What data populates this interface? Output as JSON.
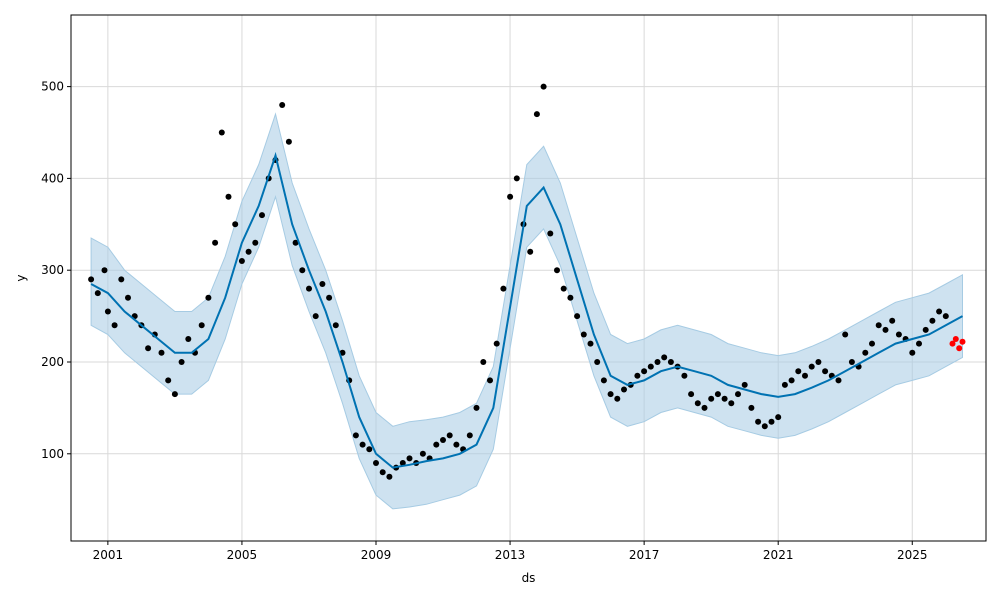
{
  "chart_data": {
    "type": "line",
    "title": "",
    "xlabel": "ds",
    "ylabel": "y",
    "x_ticks": [
      2001,
      2005,
      2009,
      2013,
      2017,
      2021,
      2025
    ],
    "y_ticks": [
      100,
      200,
      300,
      400,
      500
    ],
    "xlim": [
      1999.9,
      2027.2
    ],
    "ylim": [
      5,
      578
    ],
    "grid": true,
    "legend": "none",
    "colors": {
      "observed": "#000000",
      "forecast": "#0072B2",
      "interval": "#a6cbe3",
      "future_observed": "#ff0000"
    },
    "series": [
      {
        "role": "observed",
        "style": "points",
        "x": [
          2000.5,
          2000.7,
          2000.9,
          2001.0,
          2001.2,
          2001.4,
          2001.6,
          2001.8,
          2002.0,
          2002.2,
          2002.4,
          2002.6,
          2002.8,
          2003.0,
          2003.2,
          2003.4,
          2003.6,
          2003.8,
          2004.0,
          2004.2,
          2004.4,
          2004.6,
          2004.8,
          2005.0,
          2005.2,
          2005.4,
          2005.6,
          2005.8,
          2006.0,
          2006.2,
          2006.4,
          2006.6,
          2006.8,
          2007.0,
          2007.2,
          2007.4,
          2007.6,
          2007.8,
          2008.0,
          2008.2,
          2008.4,
          2008.6,
          2008.8,
          2009.0,
          2009.2,
          2009.4,
          2009.6,
          2009.8,
          2010.0,
          2010.2,
          2010.4,
          2010.6,
          2010.8,
          2011.0,
          2011.2,
          2011.4,
          2011.6,
          2011.8,
          2012.0,
          2012.2,
          2012.4,
          2012.6,
          2012.8,
          2013.0,
          2013.2,
          2013.4,
          2013.6,
          2013.8,
          2014.0,
          2014.2,
          2014.4,
          2014.6,
          2014.8,
          2015.0,
          2015.2,
          2015.4,
          2015.6,
          2015.8,
          2016.0,
          2016.2,
          2016.4,
          2016.6,
          2016.8,
          2017.0,
          2017.2,
          2017.4,
          2017.6,
          2017.8,
          2018.0,
          2018.2,
          2018.4,
          2018.6,
          2018.8,
          2019.0,
          2019.2,
          2019.4,
          2019.6,
          2019.8,
          2020.0,
          2020.2,
          2020.4,
          2020.6,
          2020.8,
          2021.0,
          2021.2,
          2021.4,
          2021.6,
          2021.8,
          2022.0,
          2022.2,
          2022.4,
          2022.6,
          2022.8,
          2023.0,
          2023.2,
          2023.4,
          2023.6,
          2023.8,
          2024.0,
          2024.2,
          2024.4,
          2024.6,
          2024.8,
          2025.0,
          2025.2,
          2025.4,
          2025.6,
          2025.8,
          2026.0
        ],
        "values": [
          290,
          275,
          300,
          255,
          240,
          290,
          270,
          250,
          240,
          215,
          230,
          210,
          180,
          165,
          200,
          225,
          210,
          240,
          270,
          330,
          450,
          380,
          350,
          310,
          320,
          330,
          360,
          400,
          420,
          480,
          440,
          330,
          300,
          280,
          250,
          285,
          270,
          240,
          210,
          180,
          120,
          110,
          105,
          90,
          80,
          75,
          85,
          90,
          95,
          90,
          100,
          95,
          110,
          115,
          120,
          110,
          105,
          120,
          150,
          200,
          180,
          220,
          280,
          380,
          400,
          350,
          320,
          470,
          500,
          340,
          300,
          280,
          270,
          250,
          230,
          220,
          200,
          180,
          165,
          160,
          170,
          175,
          185,
          190,
          195,
          200,
          205,
          200,
          195,
          185,
          165,
          155,
          150,
          160,
          165,
          160,
          155,
          165,
          175,
          150,
          135,
          130,
          135,
          140,
          175,
          180,
          190,
          185,
          195,
          200,
          190,
          185,
          180,
          230,
          200,
          195,
          210,
          220,
          240,
          235,
          245,
          230,
          225,
          210,
          220,
          235,
          245,
          255,
          250
        ]
      },
      {
        "role": "forecast",
        "style": "line",
        "x": [
          2000.5,
          2001.0,
          2001.5,
          2002.0,
          2002.5,
          2003.0,
          2003.5,
          2004.0,
          2004.5,
          2005.0,
          2005.5,
          2006.0,
          2006.5,
          2007.0,
          2007.5,
          2008.0,
          2008.5,
          2009.0,
          2009.5,
          2010.0,
          2010.5,
          2011.0,
          2011.5,
          2012.0,
          2012.5,
          2013.0,
          2013.5,
          2014.0,
          2014.5,
          2015.0,
          2015.5,
          2016.0,
          2016.5,
          2017.0,
          2017.5,
          2018.0,
          2018.5,
          2019.0,
          2019.5,
          2020.0,
          2020.5,
          2021.0,
          2021.5,
          2022.0,
          2022.5,
          2023.0,
          2023.5,
          2024.0,
          2024.5,
          2025.0,
          2025.5,
          2026.0,
          2026.5
        ],
        "values": [
          285,
          275,
          255,
          240,
          225,
          210,
          210,
          225,
          270,
          330,
          370,
          425,
          350,
          300,
          255,
          200,
          140,
          100,
          85,
          88,
          92,
          95,
          100,
          110,
          150,
          260,
          370,
          390,
          350,
          290,
          230,
          185,
          175,
          180,
          190,
          195,
          190,
          185,
          175,
          170,
          165,
          162,
          165,
          172,
          180,
          190,
          200,
          210,
          220,
          225,
          230,
          240,
          250
        ]
      },
      {
        "role": "interval_upper",
        "style": "band",
        "x": [
          2000.5,
          2001.0,
          2001.5,
          2002.0,
          2002.5,
          2003.0,
          2003.5,
          2004.0,
          2004.5,
          2005.0,
          2005.5,
          2006.0,
          2006.5,
          2007.0,
          2007.5,
          2008.0,
          2008.5,
          2009.0,
          2009.5,
          2010.0,
          2010.5,
          2011.0,
          2011.5,
          2012.0,
          2012.5,
          2013.0,
          2013.5,
          2014.0,
          2014.5,
          2015.0,
          2015.5,
          2016.0,
          2016.5,
          2017.0,
          2017.5,
          2018.0,
          2018.5,
          2019.0,
          2019.5,
          2020.0,
          2020.5,
          2021.0,
          2021.5,
          2022.0,
          2022.5,
          2023.0,
          2023.5,
          2024.0,
          2024.5,
          2025.0,
          2025.5,
          2026.0,
          2026.5
        ],
        "values": [
          335,
          325,
          300,
          285,
          270,
          255,
          255,
          270,
          315,
          375,
          415,
          470,
          395,
          345,
          300,
          245,
          185,
          145,
          130,
          135,
          137,
          140,
          145,
          155,
          195,
          305,
          415,
          435,
          395,
          335,
          275,
          230,
          220,
          225,
          235,
          240,
          235,
          230,
          220,
          215,
          210,
          207,
          210,
          217,
          225,
          235,
          245,
          255,
          265,
          270,
          275,
          285,
          295
        ]
      },
      {
        "role": "interval_lower",
        "style": "band",
        "x": [
          2000.5,
          2001.0,
          2001.5,
          2002.0,
          2002.5,
          2003.0,
          2003.5,
          2004.0,
          2004.5,
          2005.0,
          2005.5,
          2006.0,
          2006.5,
          2007.0,
          2007.5,
          2008.0,
          2008.5,
          2009.0,
          2009.5,
          2010.0,
          2010.5,
          2011.0,
          2011.5,
          2012.0,
          2012.5,
          2013.0,
          2013.5,
          2014.0,
          2014.5,
          2015.0,
          2015.5,
          2016.0,
          2016.5,
          2017.0,
          2017.5,
          2018.0,
          2018.5,
          2019.0,
          2019.5,
          2020.0,
          2020.5,
          2021.0,
          2021.5,
          2022.0,
          2022.5,
          2023.0,
          2023.5,
          2024.0,
          2024.5,
          2025.0,
          2025.5,
          2026.0,
          2026.5
        ],
        "values": [
          240,
          230,
          210,
          195,
          180,
          165,
          165,
          180,
          225,
          285,
          325,
          380,
          305,
          255,
          210,
          155,
          95,
          55,
          40,
          42,
          45,
          50,
          55,
          65,
          105,
          215,
          325,
          345,
          305,
          245,
          185,
          140,
          130,
          135,
          145,
          150,
          145,
          140,
          130,
          125,
          120,
          117,
          120,
          127,
          135,
          145,
          155,
          165,
          175,
          180,
          185,
          195,
          205
        ]
      },
      {
        "role": "future_observed",
        "style": "points",
        "x": [
          2026.2,
          2026.3,
          2026.4,
          2026.5
        ],
        "values": [
          220,
          225,
          215,
          222
        ]
      }
    ]
  }
}
